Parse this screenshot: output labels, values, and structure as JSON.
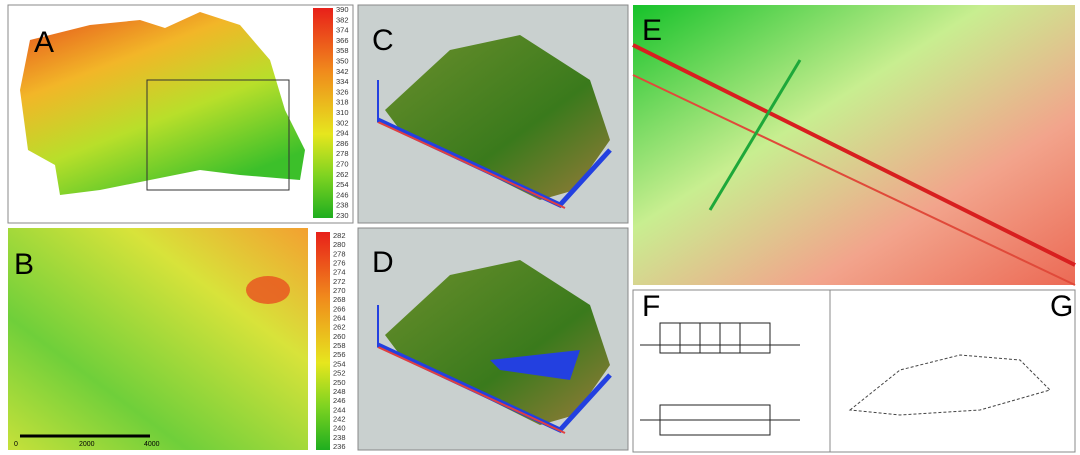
{
  "panels": [
    {
      "label": "A",
      "colorbar": {
        "ticks": [
          390,
          382,
          374,
          366,
          358,
          350,
          342,
          334,
          326,
          318,
          310,
          302,
          294,
          286,
          278,
          270,
          262,
          254,
          246,
          238,
          230
        ]
      }
    },
    {
      "label": "B",
      "colorbar": {
        "ticks": [
          282,
          280,
          278,
          276,
          274,
          272,
          270,
          268,
          266,
          264,
          262,
          260,
          258,
          256,
          254,
          252,
          250,
          248,
          246,
          244,
          242,
          240,
          238,
          236
        ]
      },
      "scalebar": [
        "0",
        "2000",
        "4000"
      ]
    },
    {
      "label": "C"
    },
    {
      "label": "D"
    },
    {
      "label": "E"
    },
    {
      "label": "F"
    },
    {
      "label": "G"
    }
  ]
}
